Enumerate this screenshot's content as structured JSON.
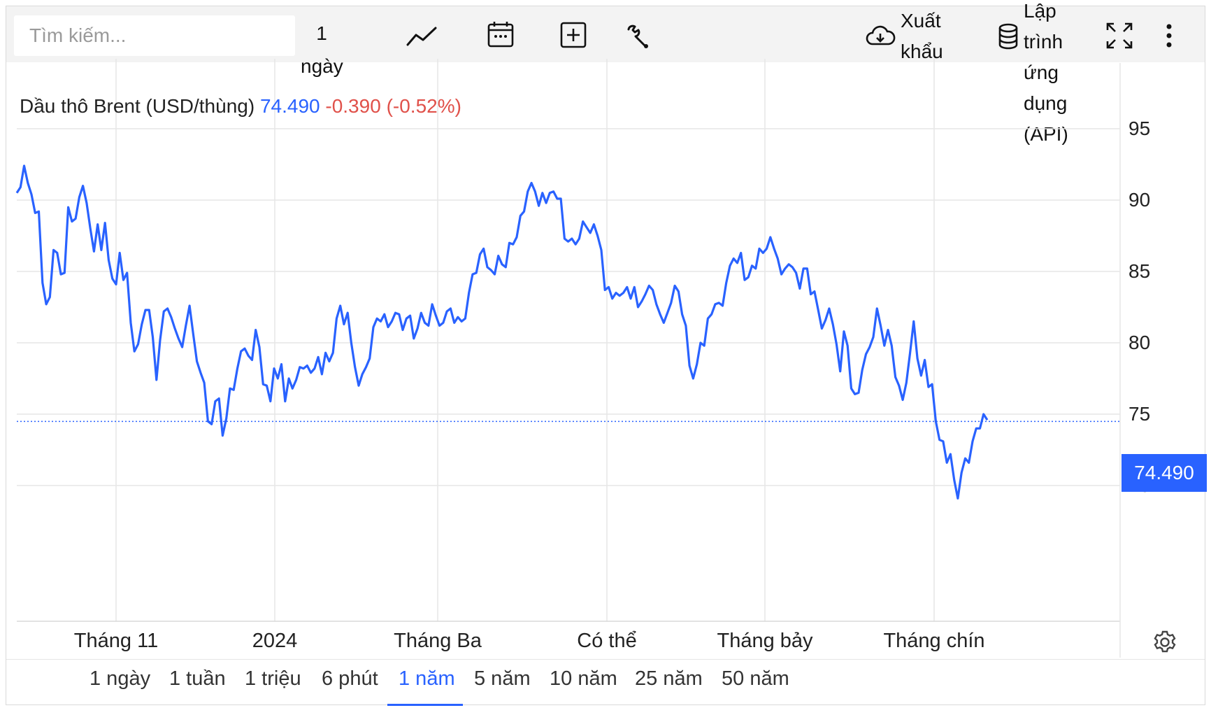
{
  "toolbar": {
    "search_placeholder": "Tìm kiếm...",
    "interval_label": "1 ngày",
    "export_label": "Xuất khẩu",
    "api_label": "Lập trình ứng dụng (API)",
    "icons": [
      "line-chart-icon",
      "calendar-icon",
      "add-indicator-icon",
      "wrench-icon",
      "cloud-download-icon",
      "database-icon",
      "fullscreen-icon",
      "more-vert-icon",
      "gear-icon"
    ]
  },
  "quote": {
    "name": "Dầu thô Brent (USD/thùng)",
    "price": "74.490",
    "change": "-0.390",
    "change_pct": "(-0.52%)"
  },
  "price_tag": "74.490",
  "colors": {
    "accent": "#2962ff",
    "negative": "#e0514a",
    "grid": "#e6e6e6"
  },
  "ranges": [
    "1 ngày",
    "1 tuần",
    "1 triệu",
    "6 phút",
    "1 năm",
    "5 năm",
    "10 năm",
    "25 năm",
    "50 năm"
  ],
  "active_range": "1 năm",
  "chart_data": {
    "type": "line",
    "series": [
      {
        "values": [
          90.5,
          90.9,
          92.4,
          91.2,
          90.4,
          89.1,
          89.2,
          84.2,
          82.7,
          83.2,
          86.5,
          86.3,
          84.8,
          84.9,
          89.5,
          88.5,
          88.7,
          90.2,
          91.0,
          89.8,
          88.0,
          86.4,
          88.3,
          86.5,
          88.4,
          85.8,
          84.5,
          84.1,
          86.3,
          84.4,
          84.9,
          81.4,
          79.4,
          79.9,
          81.3,
          82.3,
          82.3,
          80.4,
          77.4,
          80.2,
          82.2,
          82.4,
          81.8,
          81.0,
          80.3,
          79.7,
          81.2,
          82.6,
          80.6,
          78.7,
          77.9,
          77.2,
          74.5,
          74.3,
          75.9,
          76.1,
          73.5,
          74.7,
          76.8,
          76.7,
          78.2,
          79.4,
          79.6,
          79.1,
          78.8,
          80.9,
          79.7,
          77.1,
          77.0,
          75.9,
          78.2,
          77.5,
          78.5,
          75.9,
          77.5,
          76.8,
          77.4,
          78.3,
          78.2,
          78.4,
          77.9,
          78.2,
          79.0,
          77.8,
          79.3,
          78.7,
          79.3,
          81.7,
          82.6,
          81.3,
          82.1,
          80.0,
          78.3,
          77.0,
          77.8,
          78.3,
          78.9,
          81.1,
          81.7,
          81.5,
          82.0,
          81.1,
          81.5,
          82.1,
          82.0,
          80.9,
          81.7,
          81.9,
          80.3,
          81.0,
          82.1,
          81.4,
          81.2,
          82.7,
          81.9,
          81.2,
          81.4,
          82.2,
          82.4,
          81.4,
          81.8,
          81.5,
          81.7,
          83.5,
          84.8,
          84.9,
          86.2,
          86.6,
          85.3,
          85.1,
          84.8,
          86.1,
          85.5,
          85.3,
          87.0,
          86.9,
          87.4,
          88.9,
          89.2,
          90.6,
          91.2,
          90.6,
          89.6,
          90.5,
          89.8,
          90.5,
          90.6,
          90.1,
          90.1,
          87.3,
          87.1,
          87.3,
          86.9,
          87.3,
          88.5,
          88.1,
          87.7,
          88.3,
          87.5,
          86.5,
          83.7,
          83.9,
          83.1,
          83.5,
          83.3,
          83.5,
          83.9,
          83.1,
          83.9,
          82.5,
          82.9,
          83.4,
          84.0,
          83.7,
          82.7,
          82.0,
          81.4,
          82.1,
          82.8,
          84.0,
          83.6,
          82.0,
          81.2,
          78.4,
          77.5,
          78.5,
          80.0,
          79.8,
          81.7,
          82.0,
          82.7,
          82.8,
          82.6,
          84.2,
          85.4,
          85.9,
          85.6,
          86.3,
          84.4,
          84.6,
          85.4,
          85.2,
          86.6,
          86.3,
          86.6,
          87.4,
          86.6,
          85.9,
          84.8,
          85.2,
          85.5,
          85.3,
          84.9,
          83.8,
          85.2,
          85.2,
          83.4,
          83.6,
          82.3,
          81.0,
          81.6,
          82.4,
          81.3,
          79.9,
          78.0,
          80.8,
          79.8,
          76.8,
          76.4,
          76.5,
          78.1,
          79.2,
          79.7,
          80.4,
          82.4,
          81.2,
          79.8,
          80.9,
          79.8,
          77.6,
          77.0,
          76.0,
          77.2,
          79.3,
          81.5,
          78.9,
          77.7,
          78.8,
          76.9,
          77.1,
          74.5,
          73.2,
          73.1,
          71.6,
          72.2,
          70.4,
          69.1,
          70.9,
          71.9,
          71.6,
          73.1,
          74.0,
          74.0,
          75.0,
          74.6
        ],
        "color": "#2962ff"
      }
    ],
    "x_ticks": [
      "Tháng 11",
      "2024",
      "Tháng Ba",
      "Có thể",
      "Tháng bảy",
      "Tháng chín"
    ],
    "y_ticks": [
      "70",
      "75",
      "80",
      "85",
      "90",
      "95"
    ],
    "ylim": [
      65,
      100
    ],
    "last_value": 74.49,
    "grid": true
  }
}
